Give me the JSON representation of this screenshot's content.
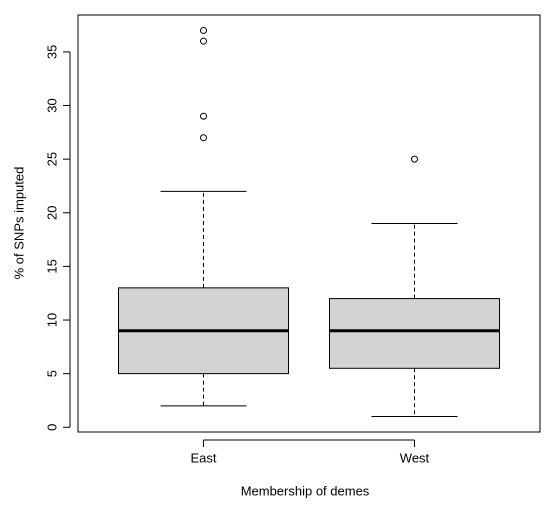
{
  "chart_data": {
    "type": "boxplot",
    "xlabel": "Membership of demes",
    "ylabel": "% of SNPs imputed",
    "categories": [
      "East",
      "West"
    ],
    "boxes": [
      {
        "min": 2,
        "q1": 5,
        "median": 9,
        "q3": 13,
        "max": 22,
        "outliers": [
          27,
          29,
          36,
          37
        ]
      },
      {
        "min": 1,
        "q1": 5.5,
        "median": 9,
        "q3": 12,
        "max": 19,
        "outliers": [
          25
        ]
      }
    ],
    "color": "#d3d3d3",
    "ylim": [
      -0.44,
      38.44
    ],
    "yticks": [
      0,
      5,
      10,
      15,
      20,
      25,
      30,
      35
    ]
  }
}
